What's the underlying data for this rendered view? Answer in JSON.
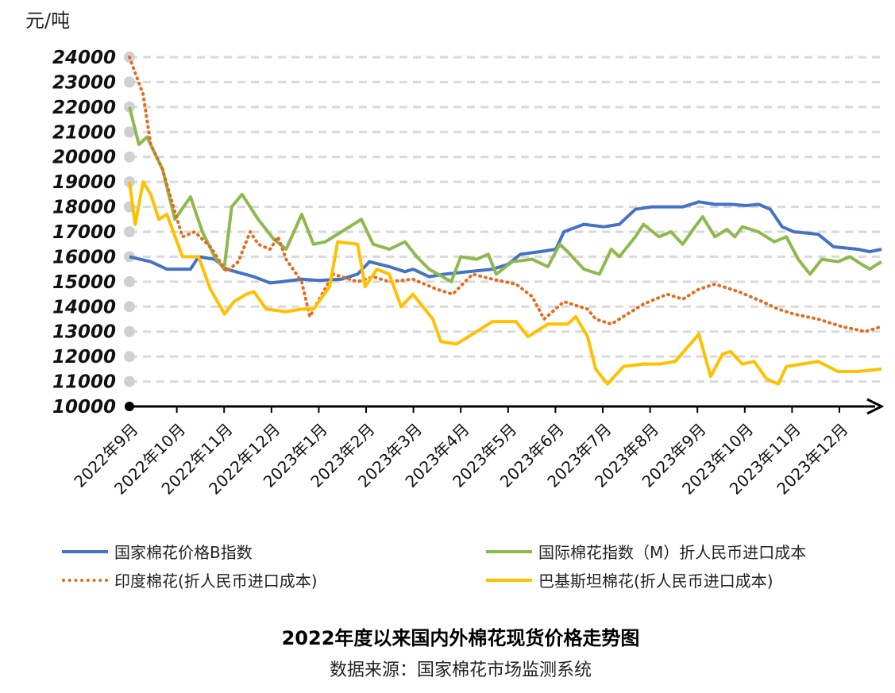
{
  "chart_data": {
    "type": "line",
    "title": "2022年度以来国内外棉花现货价格走势图",
    "source": "数据来源：国家棉花市场监测系统",
    "ylabel": "元/吨",
    "xlabel": "",
    "ylim": [
      10000,
      24000
    ],
    "yticks": [
      10000,
      11000,
      12000,
      13000,
      14000,
      15000,
      16000,
      17000,
      18000,
      19000,
      20000,
      21000,
      22000,
      23000,
      24000
    ],
    "xlim": [
      0,
      15.9
    ],
    "x_unit": "months since 2022年9月",
    "categories": [
      "2022年9月",
      "2022年10月",
      "2022年11月",
      "2022年12月",
      "2023年1月",
      "2023年2月",
      "2023年3月",
      "2023年4月",
      "2023年5月",
      "2023年6月",
      "2023年7月",
      "2023年8月",
      "2023年9月",
      "2023年10月",
      "2023年11月",
      "2023年12月"
    ],
    "grid": true,
    "legend_position": "bottom",
    "series": [
      {
        "name": "国家棉花价格B指数",
        "color": "#4472C4",
        "style": "solid",
        "points": [
          [
            0,
            16000
          ],
          [
            0.45,
            15800
          ],
          [
            0.79,
            15500
          ],
          [
            1.29,
            15500
          ],
          [
            1.46,
            16000
          ],
          [
            1.8,
            15900
          ],
          [
            2.05,
            15500
          ],
          [
            2.63,
            15200
          ],
          [
            2.97,
            14950
          ],
          [
            3.22,
            15000
          ],
          [
            3.64,
            15100
          ],
          [
            3.98,
            15050
          ],
          [
            4.48,
            15100
          ],
          [
            4.82,
            15300
          ],
          [
            5.07,
            15800
          ],
          [
            5.49,
            15600
          ],
          [
            5.82,
            15400
          ],
          [
            5.99,
            15500
          ],
          [
            6.33,
            15200
          ],
          [
            6.66,
            15300
          ],
          [
            7.16,
            15400
          ],
          [
            7.67,
            15500
          ],
          [
            8.0,
            15700
          ],
          [
            8.26,
            16100
          ],
          [
            8.67,
            16200
          ],
          [
            9.01,
            16300
          ],
          [
            9.18,
            17000
          ],
          [
            9.6,
            17300
          ],
          [
            10.02,
            17200
          ],
          [
            10.35,
            17300
          ],
          [
            10.69,
            17900
          ],
          [
            11.02,
            18000
          ],
          [
            11.36,
            18000
          ],
          [
            11.69,
            18000
          ],
          [
            12.03,
            18200
          ],
          [
            12.37,
            18100
          ],
          [
            12.7,
            18100
          ],
          [
            13.04,
            18050
          ],
          [
            13.29,
            18100
          ],
          [
            13.54,
            17900
          ],
          [
            13.79,
            17200
          ],
          [
            14.04,
            17000
          ],
          [
            14.55,
            16900
          ],
          [
            14.88,
            16400
          ],
          [
            15.39,
            16300
          ],
          [
            15.64,
            16200
          ],
          [
            15.89,
            16300
          ]
        ]
      },
      {
        "name": "国际棉花指数（M）折人民币进口成本",
        "color": "#8DB94D",
        "style": "solid",
        "points": [
          [
            0,
            22000
          ],
          [
            0.2,
            20500
          ],
          [
            0.37,
            20800
          ],
          [
            0.7,
            19500
          ],
          [
            0.96,
            17500
          ],
          [
            1.29,
            18400
          ],
          [
            1.54,
            17000
          ],
          [
            1.8,
            16000
          ],
          [
            2.0,
            15500
          ],
          [
            2.16,
            18000
          ],
          [
            2.38,
            18500
          ],
          [
            2.72,
            17500
          ],
          [
            3.05,
            16700
          ],
          [
            3.31,
            16300
          ],
          [
            3.64,
            17700
          ],
          [
            3.89,
            16500
          ],
          [
            4.14,
            16600
          ],
          [
            4.48,
            17000
          ],
          [
            4.9,
            17500
          ],
          [
            5.15,
            16500
          ],
          [
            5.49,
            16300
          ],
          [
            5.82,
            16600
          ],
          [
            6.07,
            16000
          ],
          [
            6.33,
            15500
          ],
          [
            6.8,
            15000
          ],
          [
            7.0,
            16000
          ],
          [
            7.33,
            15900
          ],
          [
            7.58,
            16100
          ],
          [
            7.75,
            15300
          ],
          [
            8.09,
            15800
          ],
          [
            8.51,
            15900
          ],
          [
            8.84,
            15600
          ],
          [
            9.09,
            16500
          ],
          [
            9.26,
            16200
          ],
          [
            9.6,
            15500
          ],
          [
            9.93,
            15300
          ],
          [
            10.18,
            16300
          ],
          [
            10.35,
            16000
          ],
          [
            10.69,
            16800
          ],
          [
            10.86,
            17300
          ],
          [
            11.19,
            16800
          ],
          [
            11.44,
            17000
          ],
          [
            11.69,
            16500
          ],
          [
            11.95,
            17200
          ],
          [
            12.11,
            17600
          ],
          [
            12.37,
            16800
          ],
          [
            12.62,
            17100
          ],
          [
            12.79,
            16800
          ],
          [
            12.95,
            17200
          ],
          [
            13.29,
            17000
          ],
          [
            13.62,
            16600
          ],
          [
            13.88,
            16800
          ],
          [
            14.13,
            15900
          ],
          [
            14.38,
            15300
          ],
          [
            14.63,
            15900
          ],
          [
            14.97,
            15800
          ],
          [
            15.22,
            16000
          ],
          [
            15.47,
            15700
          ],
          [
            15.64,
            15500
          ],
          [
            15.89,
            15800
          ]
        ]
      },
      {
        "name": "印度棉花(折人民币进口成本)",
        "color": "#E36C1E",
        "style": "dotted",
        "points": [
          [
            0,
            24000
          ],
          [
            0.29,
            22500
          ],
          [
            0.45,
            20500
          ],
          [
            0.7,
            19500
          ],
          [
            0.96,
            17800
          ],
          [
            1.12,
            16800
          ],
          [
            1.38,
            17000
          ],
          [
            1.71,
            16400
          ],
          [
            2.05,
            15400
          ],
          [
            2.3,
            15800
          ],
          [
            2.55,
            17000
          ],
          [
            2.72,
            16500
          ],
          [
            2.97,
            16300
          ],
          [
            3.14,
            16800
          ],
          [
            3.31,
            15900
          ],
          [
            3.64,
            15000
          ],
          [
            3.81,
            13600
          ],
          [
            3.98,
            14200
          ],
          [
            4.31,
            15300
          ],
          [
            4.82,
            15000
          ],
          [
            5.15,
            15200
          ],
          [
            5.49,
            15000
          ],
          [
            5.99,
            15100
          ],
          [
            6.49,
            14700
          ],
          [
            6.83,
            14500
          ],
          [
            7.25,
            15300
          ],
          [
            7.67,
            15100
          ],
          [
            8.17,
            14900
          ],
          [
            8.51,
            14400
          ],
          [
            8.76,
            13500
          ],
          [
            9.18,
            14200
          ],
          [
            9.68,
            13900
          ],
          [
            9.85,
            13500
          ],
          [
            10.18,
            13300
          ],
          [
            10.52,
            13700
          ],
          [
            10.86,
            14100
          ],
          [
            11.36,
            14500
          ],
          [
            11.69,
            14300
          ],
          [
            12.03,
            14700
          ],
          [
            12.37,
            14900
          ],
          [
            12.87,
            14600
          ],
          [
            13.37,
            14200
          ],
          [
            13.71,
            13900
          ],
          [
            14.04,
            13700
          ],
          [
            14.55,
            13500
          ],
          [
            15.05,
            13200
          ],
          [
            15.55,
            13000
          ],
          [
            15.89,
            13200
          ]
        ]
      },
      {
        "name": "巴基斯坦棉花(折人民币进口成本)",
        "color": "#FFC000",
        "style": "solid",
        "points": [
          [
            0,
            19000
          ],
          [
            0.12,
            17300
          ],
          [
            0.29,
            19000
          ],
          [
            0.45,
            18500
          ],
          [
            0.62,
            17500
          ],
          [
            0.79,
            17700
          ],
          [
            1.12,
            16000
          ],
          [
            1.46,
            16000
          ],
          [
            1.71,
            14700
          ],
          [
            2.01,
            13700
          ],
          [
            2.21,
            14200
          ],
          [
            2.47,
            14500
          ],
          [
            2.63,
            14600
          ],
          [
            2.89,
            13900
          ],
          [
            3.31,
            13800
          ],
          [
            3.64,
            13900
          ],
          [
            3.89,
            13900
          ],
          [
            4.23,
            14800
          ],
          [
            4.4,
            16600
          ],
          [
            4.82,
            16500
          ],
          [
            4.98,
            14800
          ],
          [
            5.23,
            15500
          ],
          [
            5.49,
            15300
          ],
          [
            5.74,
            14000
          ],
          [
            5.99,
            14500
          ],
          [
            6.41,
            13500
          ],
          [
            6.58,
            12600
          ],
          [
            6.91,
            12500
          ],
          [
            7.25,
            12900
          ],
          [
            7.67,
            13400
          ],
          [
            8.17,
            13400
          ],
          [
            8.42,
            12800
          ],
          [
            8.84,
            13300
          ],
          [
            9.26,
            13300
          ],
          [
            9.43,
            13600
          ],
          [
            9.68,
            12800
          ],
          [
            9.85,
            11500
          ],
          [
            10.1,
            10900
          ],
          [
            10.44,
            11600
          ],
          [
            10.86,
            11700
          ],
          [
            11.19,
            11700
          ],
          [
            11.53,
            11800
          ],
          [
            12.03,
            12900
          ],
          [
            12.28,
            11200
          ],
          [
            12.53,
            12100
          ],
          [
            12.7,
            12200
          ],
          [
            12.95,
            11700
          ],
          [
            13.2,
            11800
          ],
          [
            13.46,
            11100
          ],
          [
            13.71,
            10900
          ],
          [
            13.88,
            11600
          ],
          [
            14.21,
            11700
          ],
          [
            14.55,
            11800
          ],
          [
            14.97,
            11400
          ],
          [
            15.39,
            11400
          ],
          [
            15.89,
            11500
          ]
        ]
      }
    ]
  }
}
